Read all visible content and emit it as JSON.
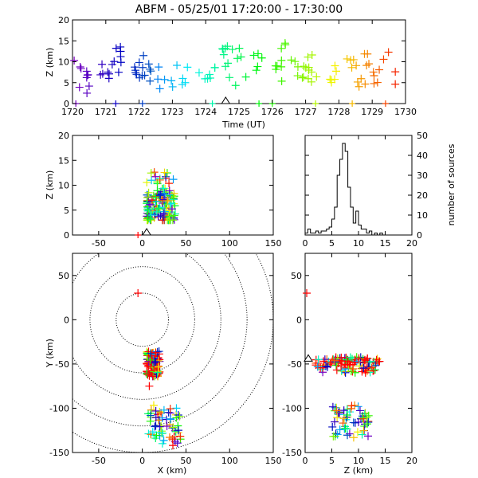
{
  "title": "ABFM - 05/25/01 17:20:00 - 17:30:00",
  "chart_data": [
    {
      "id": "time-height",
      "type": "scatter",
      "xlabel": "Time (UT)",
      "ylabel": "Z (km)",
      "xlim": [
        1720,
        1730
      ],
      "ylim": [
        0,
        20
      ],
      "xticks": [
        "1720",
        "1721",
        "1722",
        "1723",
        "1724",
        "1725",
        "1726",
        "1727",
        "1728",
        "1729",
        "1730"
      ],
      "yticks": [
        "0",
        "5",
        "10",
        "15",
        "20"
      ],
      "marker_note": "sources colored by time from purple (1720) to red (1730)",
      "station_marker": {
        "x": 1724.6,
        "y": 0
      },
      "ground_points": [
        1720.1,
        1721.3,
        1722.1,
        1724.2,
        1725.6,
        1726.0,
        1727.3,
        1728.4,
        1729.4
      ],
      "clusters": [
        {
          "t0": 1720.05,
          "t1": 1720.6,
          "n": 10,
          "zmin": 2,
          "zmax": 11
        },
        {
          "t0": 1720.8,
          "t1": 1721.5,
          "n": 14,
          "zmin": 4,
          "zmax": 14.5
        },
        {
          "t0": 1721.6,
          "t1": 1722.4,
          "n": 14,
          "zmin": 5,
          "zmax": 12
        },
        {
          "t0": 1722.5,
          "t1": 1723.3,
          "n": 8,
          "zmin": 3,
          "zmax": 10
        },
        {
          "t0": 1723.3,
          "t1": 1724.4,
          "n": 10,
          "zmin": 5,
          "zmax": 9
        },
        {
          "t0": 1724.5,
          "t1": 1725.3,
          "n": 14,
          "zmin": 4,
          "zmax": 14
        },
        {
          "t0": 1725.3,
          "t1": 1726.4,
          "n": 14,
          "zmin": 5,
          "zmax": 14.5
        },
        {
          "t0": 1726.5,
          "t1": 1727.4,
          "n": 16,
          "zmin": 5,
          "zmax": 12
        },
        {
          "t0": 1727.7,
          "t1": 1728.6,
          "n": 12,
          "zmin": 5,
          "zmax": 11
        },
        {
          "t0": 1728.6,
          "t1": 1729.7,
          "n": 16,
          "zmin": 4,
          "zmax": 12.5
        }
      ]
    },
    {
      "id": "x-z",
      "type": "scatter",
      "xlabel": "",
      "ylabel": "Z (km)",
      "xlim": [
        -80,
        150
      ],
      "ylim": [
        0,
        20
      ],
      "xticks": [
        "-50",
        "0",
        "50",
        "100",
        "150"
      ],
      "yticks": [
        "0",
        "5",
        "10",
        "15",
        "20"
      ],
      "station_marker": {
        "x": 5,
        "y": 0
      },
      "ground_points": [
        {
          "x": -5,
          "z": 0
        }
      ],
      "cloud": {
        "xmin": 5,
        "xmax": 38,
        "zmin": 3,
        "zmax": 15,
        "n": 160
      }
    },
    {
      "id": "z-histogram",
      "type": "line",
      "xlabel": "",
      "ylabel": "number of sources",
      "xlim": [
        0,
        20
      ],
      "ylim": [
        0,
        50
      ],
      "xticks": [
        "0",
        "5",
        "10",
        "15",
        "20"
      ],
      "yticks": [
        "0",
        "10",
        "20",
        "30",
        "40",
        "50"
      ],
      "bins_x": [
        0.5,
        1,
        1.5,
        2,
        2.5,
        3,
        3.5,
        4,
        4.5,
        5,
        5.5,
        6,
        6.5,
        7,
        7.5,
        8,
        8.5,
        9,
        9.5,
        10,
        10.5,
        11,
        11.5,
        12,
        12.5,
        13,
        13.5,
        14,
        14.5,
        15
      ],
      "bins_y": [
        1,
        3,
        1,
        1,
        2,
        1,
        2,
        2,
        3,
        4,
        8,
        14,
        30,
        38,
        46,
        42,
        24,
        14,
        6,
        12,
        5,
        3,
        3,
        1,
        2,
        0,
        1,
        0,
        1,
        0
      ]
    },
    {
      "id": "x-y",
      "type": "scatter",
      "xlabel": "X (km)",
      "ylabel": "Y (km)",
      "xlim": [
        -80,
        150
      ],
      "ylim": [
        -150,
        75
      ],
      "xticks": [
        "-50",
        "0",
        "50",
        "100",
        "150"
      ],
      "yticks": [
        "-150",
        "-100",
        "-50",
        "0",
        "50"
      ],
      "range_rings_km": [
        30,
        60,
        90,
        120,
        150
      ],
      "clouds": [
        {
          "xmin": 5,
          "xmax": 20,
          "ymin": -65,
          "ymax": -35,
          "n": 110
        },
        {
          "xmin": 5,
          "xmax": 40,
          "ymin": -140,
          "ymax": -95,
          "n": 60
        }
      ],
      "extra_points": [
        {
          "x": -5,
          "y": 30
        },
        {
          "x": 35,
          "y": -142
        },
        {
          "x": 8,
          "y": -75
        }
      ]
    },
    {
      "id": "z-y",
      "type": "scatter",
      "xlabel": "Z (km)",
      "ylabel": "",
      "xlim": [
        0,
        20
      ],
      "ylim": [
        -150,
        75
      ],
      "xticks": [
        "0",
        "5",
        "10",
        "15",
        "20"
      ],
      "yticks": [
        "-150",
        "-100",
        "-50",
        "0",
        "50"
      ],
      "station_marker": {
        "x": 0,
        "y": -45
      },
      "ground_points": [
        {
          "x": 0.3,
          "y": 30
        }
      ],
      "clouds": [
        {
          "xmin": 2,
          "xmax": 14,
          "ymin": -60,
          "ymax": -42,
          "n": 110
        },
        {
          "xmin": 5,
          "xmax": 12,
          "ymin": -135,
          "ymax": -95,
          "n": 60
        }
      ]
    }
  ]
}
